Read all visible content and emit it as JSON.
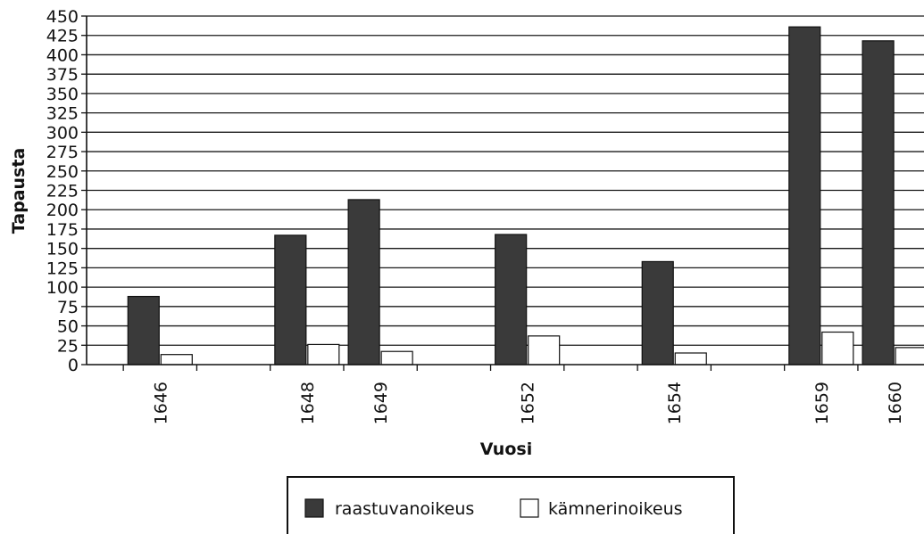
{
  "chart_data": {
    "type": "bar",
    "categories": [
      "1646",
      "1648",
      "1649",
      "1652",
      "1654",
      "1659",
      "1660"
    ],
    "x_positions": [
      1646,
      1648,
      1649,
      1651,
      1653,
      1655,
      1656
    ],
    "series": [
      {
        "name": "raastuvanoikeus",
        "values": [
          88,
          167,
          213,
          168,
          133,
          436,
          418
        ],
        "color": "#3a3a3a"
      },
      {
        "name": "kämnerinoikeus",
        "values": [
          13,
          26,
          17,
          37,
          15,
          42,
          22
        ],
        "color": "#ffffff"
      }
    ],
    "xlabel": "Vuosi",
    "ylabel": "Tapausta",
    "ylim": [
      0,
      450
    ],
    "yticks": [
      0,
      25,
      50,
      75,
      100,
      125,
      150,
      175,
      200,
      225,
      250,
      275,
      300,
      325,
      350,
      375,
      400,
      425,
      450
    ],
    "grid": true,
    "legend_position": "bottom"
  }
}
